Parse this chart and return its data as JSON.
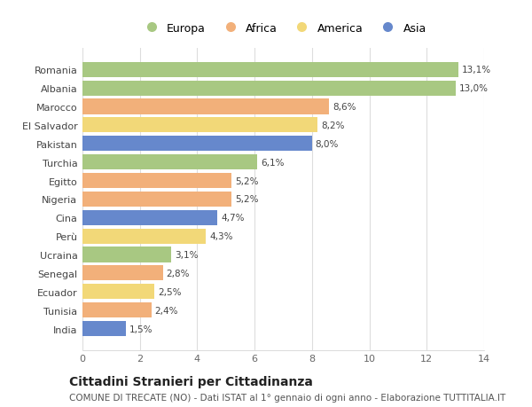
{
  "categories": [
    "Romania",
    "Albania",
    "Marocco",
    "El Salvador",
    "Pakistan",
    "Turchia",
    "Egitto",
    "Nigeria",
    "Cina",
    "Perù",
    "Ucraina",
    "Senegal",
    "Ecuador",
    "Tunisia",
    "India"
  ],
  "values": [
    13.1,
    13.0,
    8.6,
    8.2,
    8.0,
    6.1,
    5.2,
    5.2,
    4.7,
    4.3,
    3.1,
    2.8,
    2.5,
    2.4,
    1.5
  ],
  "labels": [
    "13,1%",
    "13,0%",
    "8,6%",
    "8,2%",
    "8,0%",
    "6,1%",
    "5,2%",
    "5,2%",
    "4,7%",
    "4,3%",
    "3,1%",
    "2,8%",
    "2,5%",
    "2,4%",
    "1,5%"
  ],
  "continents": [
    "Europa",
    "Europa",
    "Africa",
    "America",
    "Asia",
    "Europa",
    "Africa",
    "Africa",
    "Asia",
    "America",
    "Europa",
    "Africa",
    "America",
    "Africa",
    "Asia"
  ],
  "continent_colors": {
    "Europa": "#a8c882",
    "Africa": "#f2b07a",
    "America": "#f2d878",
    "Asia": "#6688cc"
  },
  "legend_order": [
    "Europa",
    "Africa",
    "America",
    "Asia"
  ],
  "xlim": [
    0,
    14
  ],
  "xticks": [
    0,
    2,
    4,
    6,
    8,
    10,
    12,
    14
  ],
  "title": "Cittadini Stranieri per Cittadinanza",
  "subtitle": "COMUNE DI TRECATE (NO) - Dati ISTAT al 1° gennaio di ogni anno - Elaborazione TUTTITALIA.IT",
  "background_color": "#ffffff",
  "bar_height": 0.82,
  "title_fontsize": 10,
  "subtitle_fontsize": 7.5,
  "label_fontsize": 7.5,
  "tick_fontsize": 8,
  "legend_fontsize": 9
}
